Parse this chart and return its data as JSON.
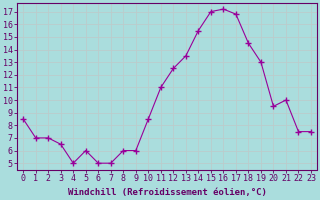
{
  "x": [
    0,
    1,
    2,
    3,
    4,
    5,
    6,
    7,
    8,
    9,
    10,
    11,
    12,
    13,
    14,
    15,
    16,
    17,
    18,
    19,
    20,
    21,
    22,
    23
  ],
  "y": [
    8.5,
    7.0,
    7.0,
    6.5,
    5.0,
    6.0,
    5.0,
    5.0,
    6.0,
    6.0,
    8.5,
    11.0,
    12.5,
    13.5,
    15.5,
    17.0,
    17.2,
    16.8,
    14.5,
    13.0,
    9.5,
    10.0,
    7.5,
    7.5
  ],
  "line_color": "#990099",
  "marker": "+",
  "marker_size": 4,
  "marker_lw": 1.0,
  "bg_color": "#aadddd",
  "grid_color": "#bbcccc",
  "xlabel": "Windchill (Refroidissement éolien,°C)",
  "ylabel_ticks": [
    5,
    6,
    7,
    8,
    9,
    10,
    11,
    12,
    13,
    14,
    15,
    16,
    17
  ],
  "xlim": [
    -0.5,
    23.5
  ],
  "ylim": [
    4.5,
    17.7
  ],
  "xlabel_fontsize": 6.5,
  "tick_fontsize": 6.0,
  "axis_color": "#660066",
  "spine_color": "#660066"
}
